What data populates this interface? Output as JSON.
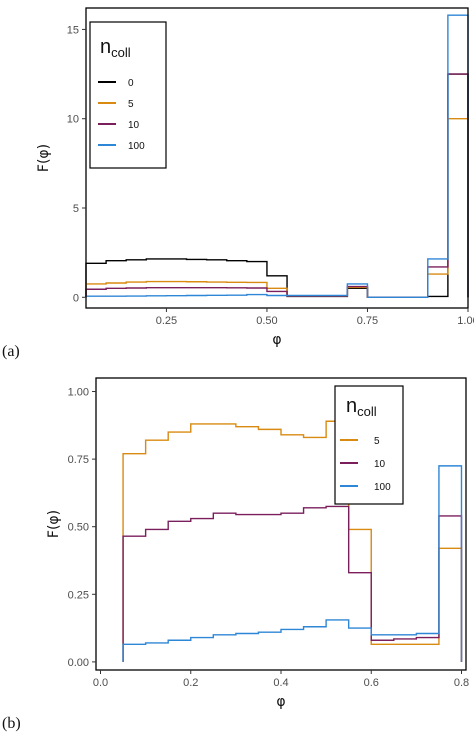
{
  "chart_data": [
    {
      "panel": "(a)",
      "type": "line",
      "step": true,
      "xlabel": "φ",
      "ylabel": "F(φ)",
      "xlim": [
        0.05,
        1.0
      ],
      "ylim": [
        -0.6,
        16.2
      ],
      "xticks": [
        0.25,
        0.5,
        0.75,
        1.0
      ],
      "xtick_labels": [
        "0.25",
        "0.50",
        "0.75",
        "1.00"
      ],
      "yticks": [
        0,
        5,
        10,
        15
      ],
      "ytick_labels": [
        "0",
        "5",
        "10",
        "15"
      ],
      "grid": false,
      "legend": {
        "title": "n",
        "title_sub": "coll",
        "placement": "top-left"
      },
      "edges": [
        0.05,
        0.1,
        0.15,
        0.2,
        0.25,
        0.3,
        0.35,
        0.4,
        0.45,
        0.5,
        0.55,
        0.6,
        0.65,
        0.7,
        0.75,
        0.8,
        0.85,
        0.9,
        0.95,
        1.0
      ],
      "series": [
        {
          "name": "0",
          "color": "#000000",
          "values": [
            1.9,
            2.05,
            2.1,
            2.15,
            2.15,
            2.12,
            2.1,
            2.05,
            2.0,
            1.2,
            0.05,
            0.05,
            0.05,
            0.5,
            0.0,
            0.0,
            0.0,
            0.05,
            12.5
          ]
        },
        {
          "name": "5",
          "color": "#D98A10",
          "values": [
            0.75,
            0.8,
            0.85,
            0.88,
            0.88,
            0.87,
            0.85,
            0.84,
            0.83,
            0.5,
            0.07,
            0.07,
            0.07,
            0.55,
            0.0,
            0.0,
            0.0,
            1.3,
            10.0
          ]
        },
        {
          "name": "10",
          "color": "#7A1F5C",
          "values": [
            0.45,
            0.5,
            0.52,
            0.54,
            0.54,
            0.54,
            0.54,
            0.53,
            0.52,
            0.33,
            0.07,
            0.07,
            0.07,
            0.6,
            0.0,
            0.0,
            0.0,
            1.7,
            12.5
          ]
        },
        {
          "name": "100",
          "color": "#2E86D6",
          "values": [
            0.06,
            0.06,
            0.07,
            0.08,
            0.09,
            0.1,
            0.11,
            0.12,
            0.15,
            0.1,
            0.1,
            0.1,
            0.1,
            0.75,
            0.0,
            0.0,
            0.0,
            2.15,
            15.8
          ]
        }
      ]
    },
    {
      "panel": "(b)",
      "type": "line",
      "step": true,
      "xlabel": "φ",
      "ylabel": "F(φ)",
      "xlim": [
        -0.01,
        0.81
      ],
      "ylim": [
        -0.03,
        1.05
      ],
      "xticks": [
        0.0,
        0.2,
        0.4,
        0.6,
        0.8
      ],
      "xtick_labels": [
        "0.0",
        "0.2",
        "0.4",
        "0.6",
        "0.8"
      ],
      "yticks": [
        0.0,
        0.25,
        0.5,
        0.75,
        1.0
      ],
      "ytick_labels": [
        "0.00",
        "0.25",
        "0.50",
        "0.75",
        "1.00"
      ],
      "grid": false,
      "legend": {
        "title": "n",
        "title_sub": "coll",
        "placement": "top-right"
      },
      "edges": [
        0.05,
        0.1,
        0.15,
        0.2,
        0.25,
        0.3,
        0.35,
        0.4,
        0.45,
        0.5,
        0.55,
        0.6,
        0.65,
        0.7,
        0.75,
        0.8
      ],
      "series": [
        {
          "name": "5",
          "color": "#D98A10",
          "values": [
            0.77,
            0.82,
            0.85,
            0.88,
            0.88,
            0.87,
            0.86,
            0.84,
            0.83,
            0.89,
            0.49,
            0.065,
            0.065,
            0.065,
            0.42
          ]
        },
        {
          "name": "10",
          "color": "#7A1F5C",
          "values": [
            0.465,
            0.49,
            0.52,
            0.53,
            0.55,
            0.545,
            0.545,
            0.55,
            0.57,
            0.575,
            0.33,
            0.08,
            0.085,
            0.09,
            0.54
          ]
        },
        {
          "name": "100",
          "color": "#2E86D6",
          "values": [
            0.065,
            0.07,
            0.08,
            0.09,
            0.1,
            0.105,
            0.11,
            0.12,
            0.13,
            0.155,
            0.125,
            0.1,
            0.1,
            0.105,
            0.725
          ]
        }
      ]
    }
  ]
}
